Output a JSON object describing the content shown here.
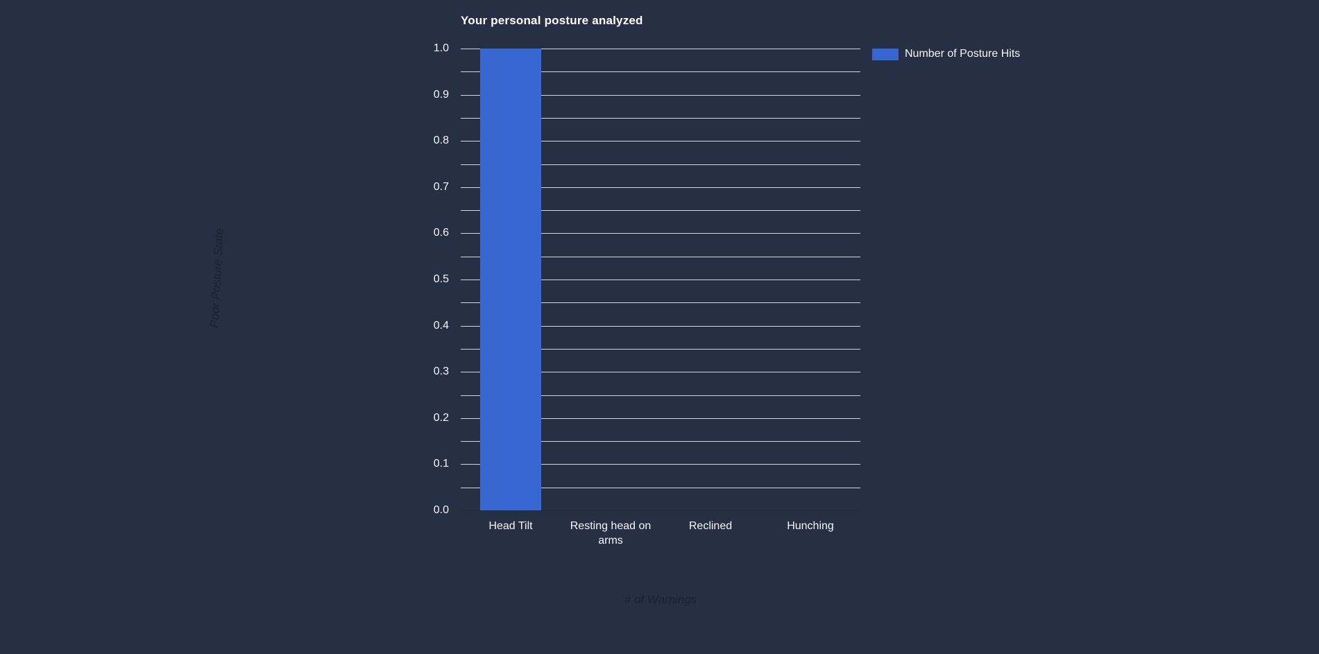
{
  "colors": {
    "background": "#263044",
    "bar": "#3767d0",
    "gridline": "#d3d6db",
    "baseline": "#1f2836",
    "tick_text": "#f5f6f8",
    "title_text": "#ffffff",
    "axis_title_text": "#1a2130"
  },
  "chart_data": {
    "type": "bar",
    "title": "Your personal posture analyzed",
    "categories": [
      "Head Tilt",
      "Resting head on arms",
      "Reclined",
      "Hunching"
    ],
    "series": [
      {
        "name": "Number of Posture Hits",
        "values": [
          1.0,
          0,
          0,
          0
        ],
        "color": "#3767d0"
      }
    ],
    "xlabel": "# of Warnings",
    "ylabel": "Poor Posture State",
    "ylim": [
      0.0,
      1.0
    ],
    "y_tick_step": 0.1,
    "y_grid_step": 0.05,
    "y_ticks": [
      "1.0",
      "0.9",
      "0.8",
      "0.7",
      "0.6",
      "0.5",
      "0.4",
      "0.3",
      "0.2",
      "0.1",
      "0.0"
    ],
    "grid": true,
    "legend_position": "top-right"
  }
}
